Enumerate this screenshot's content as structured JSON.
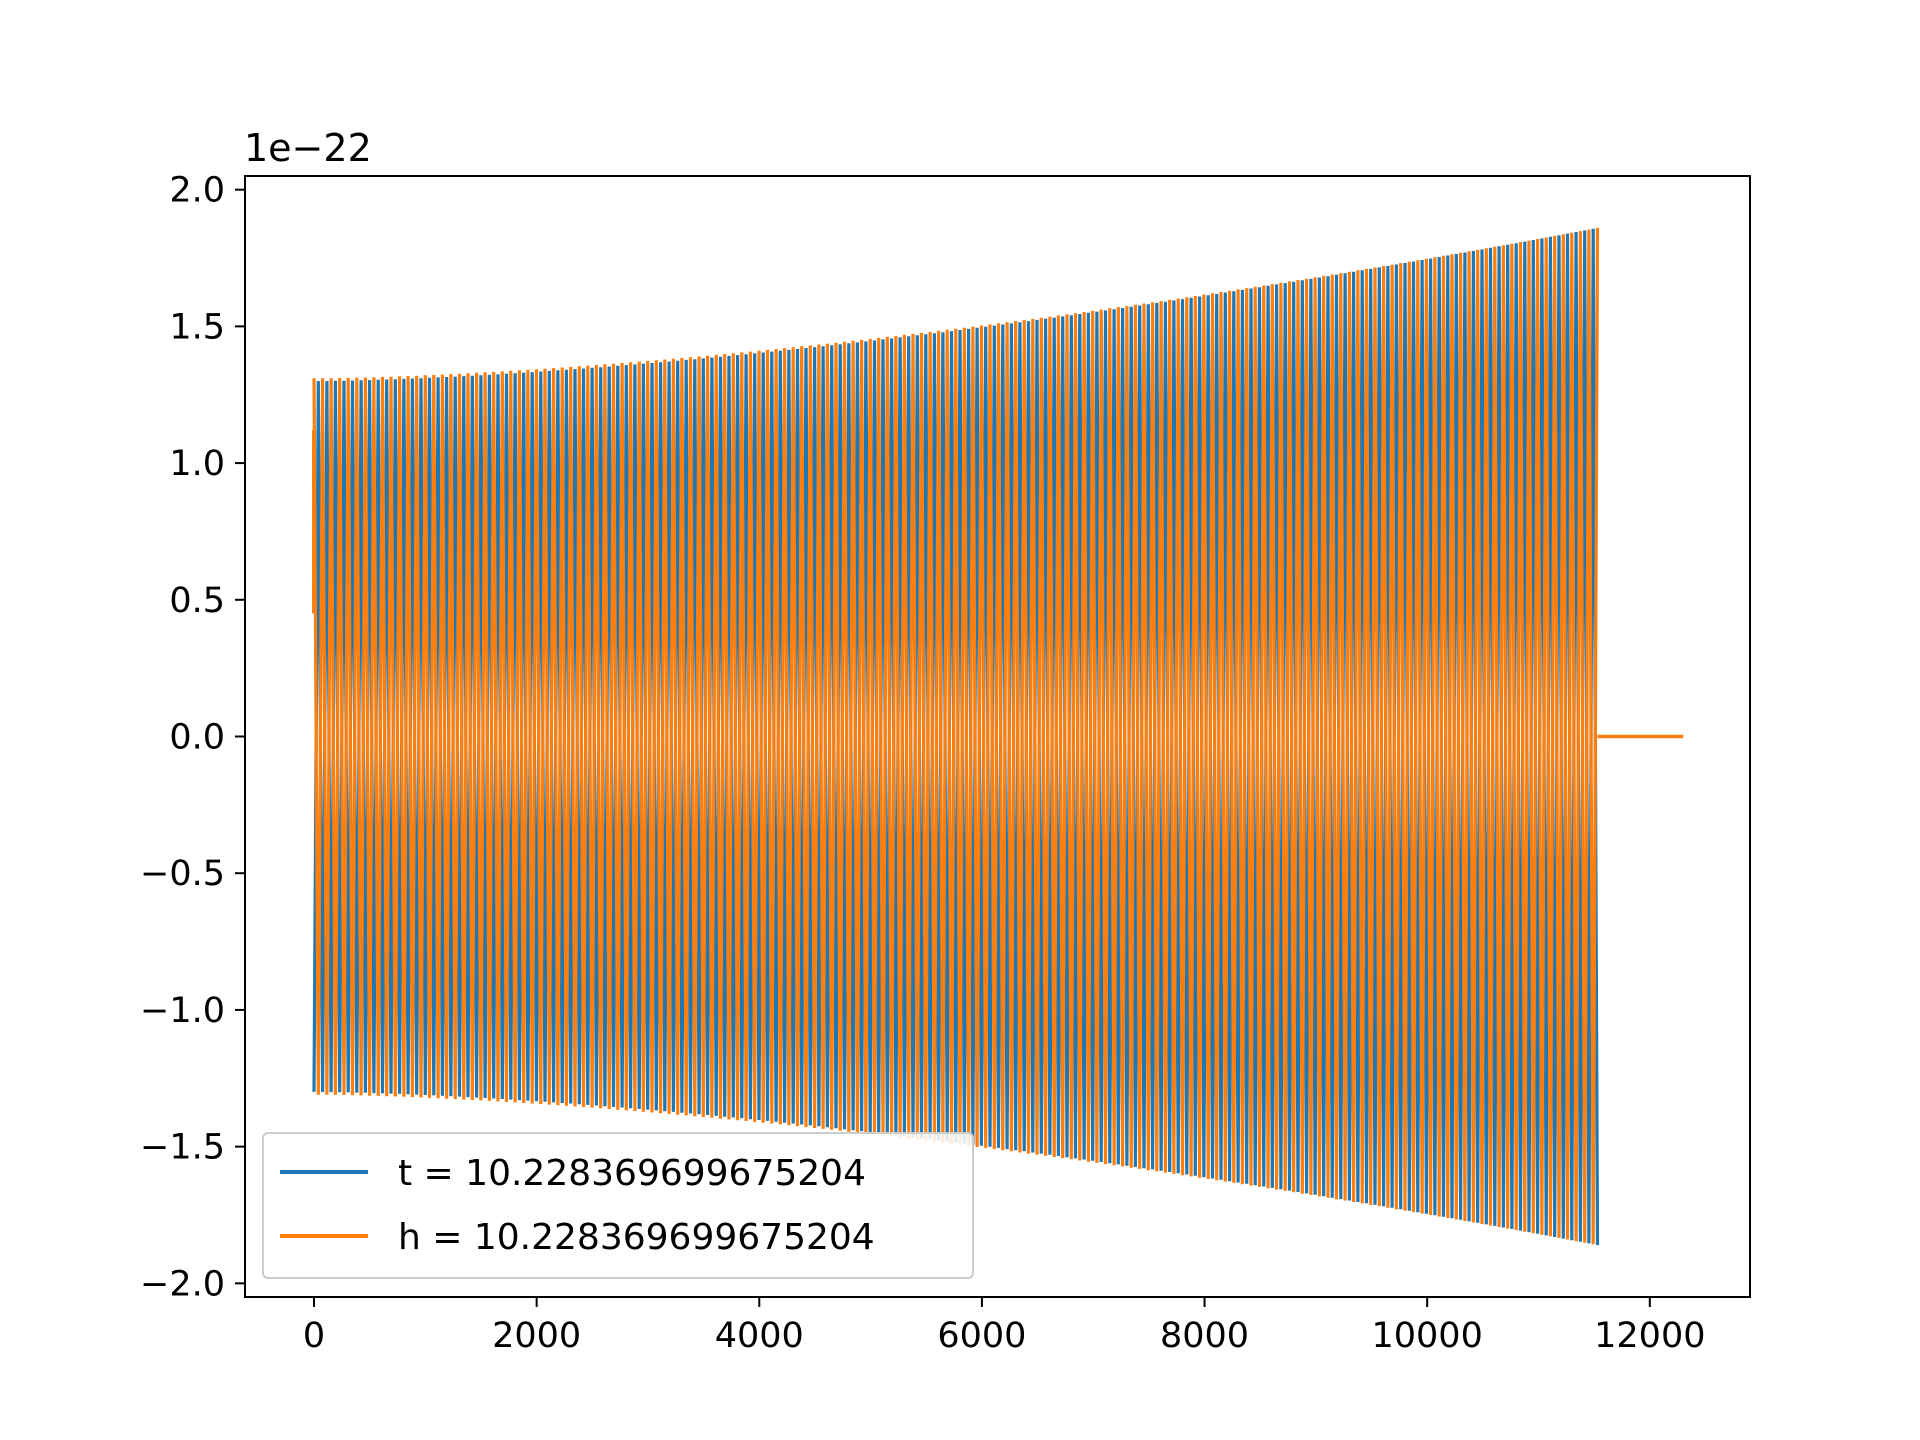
{
  "chart_data": {
    "type": "line",
    "title": "",
    "xlabel": "",
    "ylabel": "",
    "y_offset_label": "1e−22",
    "xlim": [
      -620,
      12900
    ],
    "ylim": [
      -2.05,
      2.05
    ],
    "x_ticks": [
      0,
      2000,
      4000,
      6000,
      8000,
      10000,
      12000
    ],
    "x_tick_labels": [
      "0",
      "2000",
      "4000",
      "6000",
      "8000",
      "10000",
      "12000"
    ],
    "y_ticks": [
      2.0,
      1.5,
      1.0,
      0.5,
      0.0,
      -0.5,
      -1.0,
      -1.5,
      -2.0
    ],
    "y_tick_labels": [
      "2.0",
      "1.5",
      "1.0",
      "0.5",
      "0.0",
      "−0.5",
      "−1.0",
      "−1.5",
      "−2.0"
    ],
    "grid": false,
    "legend_position": "lower-left",
    "series": [
      {
        "name": "t = 10.228369699675204",
        "color": "#1f77b4",
        "description": "oscillating waveform mostly hidden behind series h",
        "x_start": 0,
        "x_end": 11530,
        "start_amplitude": 1.3,
        "end_amplitude": 1.86,
        "cycles": 150
      },
      {
        "name": "h = 10.228369699675204",
        "color": "#ff7f0e",
        "x_start": 0,
        "x_end": 11530,
        "start_amplitude": 1.31,
        "end_amplitude": 1.86,
        "cycles": 150,
        "tail": {
          "x_start": 11530,
          "x_end": 12300,
          "y": 0.0
        }
      }
    ]
  }
}
